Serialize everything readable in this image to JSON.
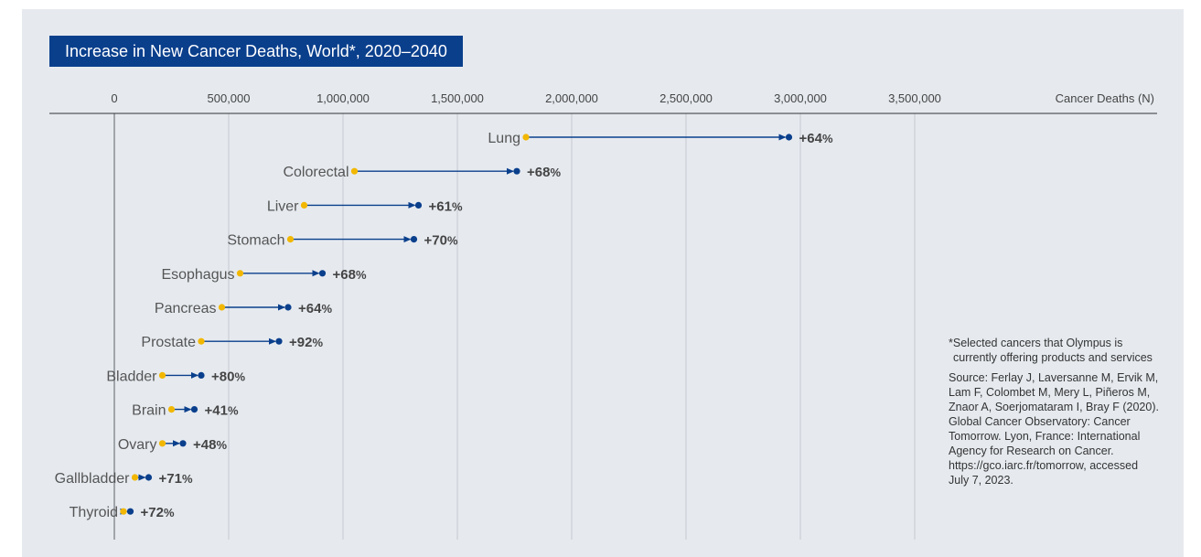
{
  "title": "Increase in New Cancer Deaths, World*, 2020–2040",
  "footnote": "*Selected cancers that Olympus is currently offering products and services",
  "source": "Source: Ferlay J, Laversanne M, Ervik M, Lam F, Colombet M, Mery L, Piñeros M, Znaor A, Soerjomataram I, Bray F (2020). Global Cancer Observatory: Cancer Tomorrow. Lyon, France: International Agency for Research on Cancer. https://gco.iarc.fr/tomorrow, accessed July 7, 2023.",
  "colors": {
    "start": "#f2b700",
    "end": "#0a3f8c",
    "title_bg": "#0a3f8c",
    "panel": "#e6eaef"
  },
  "chart_data": {
    "type": "dumbbell",
    "x_axis_label": "Cancer Deaths (N)",
    "xlim": [
      0,
      3600000
    ],
    "x_ticks": [
      0,
      500000,
      1000000,
      1500000,
      2000000,
      2500000,
      3000000,
      3500000
    ],
    "x_tick_labels": [
      "0",
      "500,000",
      "1,000,000",
      "1,500,000",
      "2,000,000",
      "2,500,000",
      "3,000,000",
      "3,500,000"
    ],
    "grid": true,
    "categories": [
      "Lung",
      "Colorectal",
      "Liver",
      "Stomach",
      "Esophagus",
      "Pancreas",
      "Prostate",
      "Bladder",
      "Brain",
      "Ovary",
      "Gallbladder",
      "Thyroid"
    ],
    "start_2020": [
      1800000,
      1050000,
      830000,
      770000,
      550000,
      470000,
      380000,
      210000,
      250000,
      210000,
      90000,
      40000
    ],
    "end_2040": [
      2950000,
      1760000,
      1330000,
      1310000,
      910000,
      760000,
      720000,
      380000,
      350000,
      300000,
      150000,
      70000
    ],
    "change_number": [
      "+64",
      "+68",
      "+61",
      "+70",
      "+68",
      "+64",
      "+92",
      "+80",
      "+41",
      "+48",
      "+71",
      "+72"
    ],
    "change_sign": [
      "%",
      "%",
      "%",
      "%",
      "%",
      "%",
      "%",
      "%",
      "%",
      "%",
      "%",
      "%"
    ]
  }
}
